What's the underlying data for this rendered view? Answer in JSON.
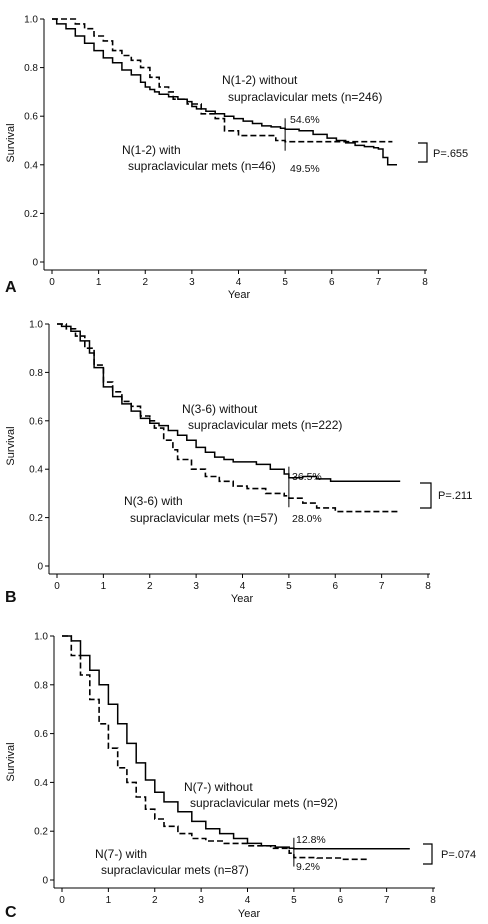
{
  "chart_data": [
    {
      "type": "line",
      "panel_label": "A",
      "xlabel": "Year",
      "ylabel": "Survival",
      "xlim": [
        0,
        8
      ],
      "ylim": [
        0,
        1
      ],
      "xticks": [
        "0",
        "1",
        "2",
        "3",
        "4",
        "5",
        "6",
        "7",
        "8"
      ],
      "yticks": [
        "0",
        "0.2",
        "0.4",
        "0.6",
        "0.8",
        "1.0"
      ],
      "series": [
        {
          "name": "N(1-2) without supraclavicular mets (n=246)",
          "line_style": "solid",
          "x": [
            0,
            0.1,
            0.3,
            0.5,
            0.7,
            0.9,
            1.1,
            1.3,
            1.5,
            1.7,
            1.9,
            2.0,
            2.1,
            2.2,
            2.3,
            2.5,
            2.7,
            2.9,
            3.0,
            3.1,
            3.3,
            3.5,
            3.7,
            3.9,
            4.1,
            4.3,
            4.5,
            4.7,
            4.9,
            5.0,
            5.3,
            5.6,
            5.9,
            6.1,
            6.3,
            6.5,
            6.7,
            6.9,
            7.0,
            7.1,
            7.2,
            7.4
          ],
          "y": [
            1.0,
            0.98,
            0.96,
            0.93,
            0.9,
            0.87,
            0.84,
            0.82,
            0.79,
            0.77,
            0.74,
            0.72,
            0.71,
            0.7,
            0.69,
            0.68,
            0.67,
            0.66,
            0.64,
            0.63,
            0.62,
            0.61,
            0.6,
            0.59,
            0.58,
            0.57,
            0.56,
            0.556,
            0.55,
            0.546,
            0.54,
            0.525,
            0.51,
            0.5,
            0.49,
            0.48,
            0.475,
            0.47,
            0.465,
            0.43,
            0.4,
            0.4
          ]
        },
        {
          "name": "N(1-2) with supraclavicular mets (n=46)",
          "line_style": "dashed",
          "x": [
            0,
            0.3,
            0.5,
            0.7,
            0.9,
            1.1,
            1.3,
            1.5,
            1.7,
            1.9,
            2.1,
            2.3,
            2.5,
            2.6,
            2.9,
            3.2,
            3.5,
            3.7,
            4.0,
            4.4,
            4.8,
            5.0,
            6.0,
            7.3
          ],
          "y": [
            1.0,
            1.0,
            0.98,
            0.96,
            0.93,
            0.91,
            0.87,
            0.85,
            0.83,
            0.8,
            0.76,
            0.72,
            0.7,
            0.67,
            0.65,
            0.61,
            0.59,
            0.54,
            0.52,
            0.52,
            0.5,
            0.495,
            0.495,
            0.495
          ]
        }
      ],
      "annotations": [
        {
          "text": "54.6%",
          "x": 5,
          "y": 0.546
        },
        {
          "text": "49.5%",
          "x": 5,
          "y": 0.495
        }
      ],
      "p_value": "P=.655",
      "labels": {
        "without_l1": "N(1-2) without",
        "without_l2": "supraclavicular mets (n=246)",
        "with_l1": "N(1-2) with",
        "with_l2": "supraclavicular mets (n=46)",
        "pct_top": "54.6%",
        "pct_bottom": "49.5%"
      }
    },
    {
      "type": "line",
      "panel_label": "B",
      "xlabel": "Year",
      "ylabel": "Survival",
      "xlim": [
        0,
        8
      ],
      "ylim": [
        0,
        1
      ],
      "xticks": [
        "0",
        "1",
        "2",
        "3",
        "4",
        "5",
        "6",
        "7",
        "8"
      ],
      "yticks": [
        "0",
        "0.2",
        "0.4",
        "0.6",
        "0.8",
        "1.0"
      ],
      "series": [
        {
          "name": "N(3-6) without supraclavicular mets (n=222)",
          "line_style": "solid",
          "x": [
            0,
            0.1,
            0.3,
            0.5,
            0.7,
            0.8,
            1.0,
            1.2,
            1.4,
            1.6,
            1.8,
            2.0,
            2.2,
            2.4,
            2.6,
            2.8,
            3.0,
            3.2,
            3.4,
            3.6,
            3.8,
            4.0,
            4.3,
            4.6,
            4.9,
            5.0,
            5.3,
            5.6,
            5.9,
            6.0,
            7.4
          ],
          "y": [
            1.0,
            0.99,
            0.97,
            0.93,
            0.88,
            0.82,
            0.74,
            0.7,
            0.67,
            0.64,
            0.61,
            0.59,
            0.58,
            0.56,
            0.54,
            0.52,
            0.49,
            0.47,
            0.45,
            0.44,
            0.43,
            0.43,
            0.42,
            0.4,
            0.38,
            0.365,
            0.37,
            0.36,
            0.35,
            0.35,
            0.35
          ]
        },
        {
          "name": "N(3-6) with supraclavicular mets (n=57)",
          "line_style": "dashed",
          "x": [
            0,
            0.2,
            0.4,
            0.6,
            0.8,
            1.0,
            1.2,
            1.4,
            1.6,
            1.8,
            2.0,
            2.1,
            2.3,
            2.5,
            2.6,
            2.9,
            3.2,
            3.5,
            3.8,
            4.1,
            4.5,
            4.9,
            5.0,
            5.3,
            5.6,
            6.0,
            7.4
          ],
          "y": [
            1.0,
            0.98,
            0.95,
            0.9,
            0.83,
            0.76,
            0.72,
            0.68,
            0.66,
            0.62,
            0.6,
            0.57,
            0.52,
            0.48,
            0.44,
            0.4,
            0.37,
            0.35,
            0.33,
            0.32,
            0.3,
            0.29,
            0.28,
            0.26,
            0.24,
            0.225,
            0.225
          ]
        }
      ],
      "annotations": [
        {
          "text": "36.5%",
          "x": 5,
          "y": 0.365
        },
        {
          "text": "28.0%",
          "x": 5,
          "y": 0.28
        }
      ],
      "p_value": "P=.211",
      "labels": {
        "without_l1": "N(3-6) without",
        "without_l2": "supraclavicular mets (n=222)",
        "with_l1": "N(3-6) with",
        "with_l2": "supraclavicular mets (n=57)",
        "pct_top": "36.5%",
        "pct_bottom": "28.0%"
      }
    },
    {
      "type": "line",
      "panel_label": "C",
      "xlabel": "Year",
      "ylabel": "Survival",
      "xlim": [
        0,
        8
      ],
      "ylim": [
        0,
        1
      ],
      "xticks": [
        "0",
        "1",
        "2",
        "3",
        "4",
        "5",
        "6",
        "7",
        "8"
      ],
      "yticks": [
        "0",
        "0.2",
        "0.4",
        "0.6",
        "0.8",
        "1.0"
      ],
      "series": [
        {
          "name": "N(7-) without supraclavicular mets (n=92)",
          "line_style": "solid",
          "x": [
            0,
            0.2,
            0.4,
            0.6,
            0.8,
            1.0,
            1.2,
            1.4,
            1.6,
            1.8,
            2.0,
            2.2,
            2.5,
            2.8,
            3.1,
            3.4,
            3.7,
            4.0,
            4.3,
            4.6,
            4.9,
            5.0,
            6.0,
            7.5
          ],
          "y": [
            1.0,
            0.98,
            0.92,
            0.86,
            0.8,
            0.72,
            0.64,
            0.56,
            0.48,
            0.41,
            0.36,
            0.32,
            0.28,
            0.24,
            0.21,
            0.19,
            0.17,
            0.15,
            0.14,
            0.135,
            0.13,
            0.128,
            0.128,
            0.128
          ]
        },
        {
          "name": "N(7-) with supraclavicular mets (n=87)",
          "line_style": "dashed",
          "x": [
            0,
            0.2,
            0.4,
            0.6,
            0.8,
            1.0,
            1.2,
            1.4,
            1.6,
            1.8,
            2.0,
            2.2,
            2.5,
            2.8,
            3.1,
            3.5,
            4.0,
            4.5,
            4.9,
            5.0,
            5.5,
            6.0,
            6.6
          ],
          "y": [
            1.0,
            0.92,
            0.84,
            0.74,
            0.64,
            0.54,
            0.46,
            0.4,
            0.34,
            0.29,
            0.25,
            0.22,
            0.19,
            0.17,
            0.16,
            0.15,
            0.14,
            0.13,
            0.11,
            0.092,
            0.09,
            0.085,
            0.08
          ]
        }
      ],
      "annotations": [
        {
          "text": "12.8%",
          "x": 5,
          "y": 0.128
        },
        {
          "text": "9.2%",
          "x": 5,
          "y": 0.092
        }
      ],
      "p_value": "P=.074",
      "labels": {
        "without_l1": "N(7-)  without",
        "without_l2": "supraclavicular mets (n=92)",
        "with_l1": "N(7-) with",
        "with_l2": "supraclavicular mets (n=87)",
        "pct_top": "12.8%",
        "pct_bottom": "9.2%"
      }
    }
  ]
}
